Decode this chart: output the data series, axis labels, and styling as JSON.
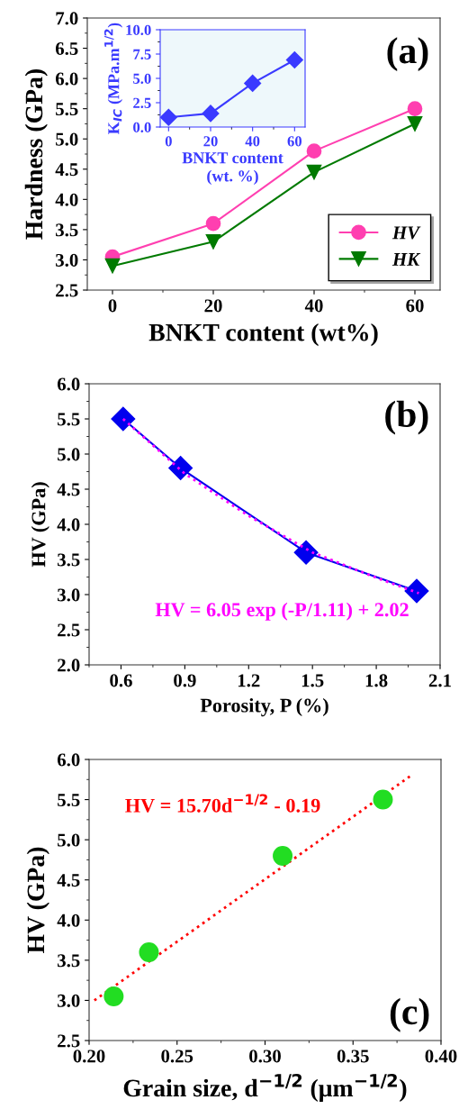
{
  "chart_data": [
    {
      "type": "line",
      "xlabel": "BNKT content (wt%)",
      "ylabel": "Hardness (GPa)",
      "xlim": [
        -5,
        65
      ],
      "xticks": [
        0,
        20,
        40,
        60
      ],
      "ylim": [
        2.5,
        7.0
      ],
      "yticks": [
        2.5,
        {
          "value": 3,
          "label": "3.0"
        },
        3.5,
        {
          "value": 4,
          "label": "4.0"
        },
        4.5,
        {
          "value": 5,
          "label": "5.0"
        },
        5.5,
        {
          "value": 6,
          "label": "6.0"
        },
        6.5,
        {
          "value": 7,
          "label": "7.0"
        }
      ],
      "legend": "bottom right",
      "annotations": [
        "(a)"
      ],
      "x": [
        0,
        20,
        40,
        60
      ],
      "series": [
        {
          "name": "HV",
          "color": "#ff3fb0",
          "marker": "circle",
          "values": [
            3.05,
            3.6,
            4.8,
            5.5
          ]
        },
        {
          "name": "HK",
          "color": "#007a00",
          "marker": "triangle",
          "values": [
            2.9,
            3.3,
            4.45,
            5.25
          ]
        }
      ]
    },
    {
      "type": "line",
      "xlabel": "BNKT content\n(wt. %)",
      "ylabel": "K$_{IC}$ (MPa.m$^{1/2}$)",
      "xlim": [
        -4,
        65
      ],
      "xticks": [
        0,
        20,
        40,
        60
      ],
      "ylim": [
        0,
        10
      ],
      "yticks": [
        {
          "value": 0,
          "label": "0.0"
        },
        2.5,
        {
          "value": 5,
          "label": "5.0"
        },
        7.5,
        {
          "value": 10,
          "label": "10.0"
        }
      ],
      "x": [
        0,
        20,
        40,
        60
      ],
      "series": [
        {
          "color": "#3a3aff",
          "marker": "diamond",
          "values": [
            1.0,
            1.4,
            4.5,
            6.9
          ]
        }
      ]
    },
    {
      "type": "line",
      "xlabel": "Porosity, P (%)",
      "ylabel": "HV (GPa)",
      "xlim": [
        0.45,
        2.1
      ],
      "xticks": [
        0.6,
        0.9,
        1.2,
        1.5,
        1.8,
        2.1
      ],
      "ylim": [
        2.0,
        6.0
      ],
      "yticks": [
        {
          "value": 2,
          "label": "2.0"
        },
        2.5,
        {
          "value": 3,
          "label": "3.0"
        },
        3.5,
        {
          "value": 4,
          "label": "4.0"
        },
        4.5,
        {
          "value": 5,
          "label": "5.0"
        },
        5.5,
        {
          "value": 6,
          "label": "6.0"
        }
      ],
      "annotations": [
        "(b)",
        "HV = 6.05 exp (-P/1.11) + 2.02"
      ],
      "series": [
        {
          "color": "#0000ee",
          "marker": "diamond",
          "x": [
            0.61,
            0.88,
            1.47,
            1.99
          ],
          "values": [
            5.5,
            4.8,
            3.6,
            3.05
          ]
        },
        {
          "type": "line",
          "color": "#ff00ff",
          "marker": "none",
          "line_style": "dotted",
          "x": [
            0.61,
            0.9,
            1.2,
            1.5,
            1.8,
            2.0
          ],
          "values": [
            5.5,
            4.72,
            4.12,
            3.6,
            3.24,
            3.02
          ]
        }
      ]
    },
    {
      "type": "scatter",
      "xlabel": "Grain size, d$^{−1/2}$ (μm$^{−1/2}$)",
      "ylabel": "HV (GPa)",
      "xlim": [
        0.2,
        0.4
      ],
      "xticks": [
        {
          "value": 0.2,
          "label": "0.20"
        },
        0.25,
        {
          "value": 0.3,
          "label": "0.30"
        },
        0.35,
        {
          "value": 0.4,
          "label": "0.40"
        }
      ],
      "ylim": [
        2.5,
        6.0
      ],
      "yticks": [
        2.5,
        {
          "value": 3,
          "label": "3.0"
        },
        3.5,
        {
          "value": 4,
          "label": "4.0"
        },
        4.5,
        {
          "value": 5,
          "label": "5.0"
        },
        5.5,
        {
          "value": 6,
          "label": "6.0"
        }
      ],
      "annotations": [
        "(c)",
        "HV = 15.70d$^{−1/2}$ - 0.19"
      ],
      "series": [
        {
          "color": "#22dd22",
          "marker": "circle",
          "x": [
            0.214,
            0.234,
            0.31,
            0.367
          ],
          "values": [
            3.05,
            3.6,
            4.8,
            5.5
          ]
        },
        {
          "type": "line",
          "color": "#ff0000",
          "marker": "none",
          "line_style": "dotted",
          "x": [
            0.203,
            0.383
          ],
          "values": [
            3.0,
            5.8
          ]
        }
      ]
    }
  ]
}
